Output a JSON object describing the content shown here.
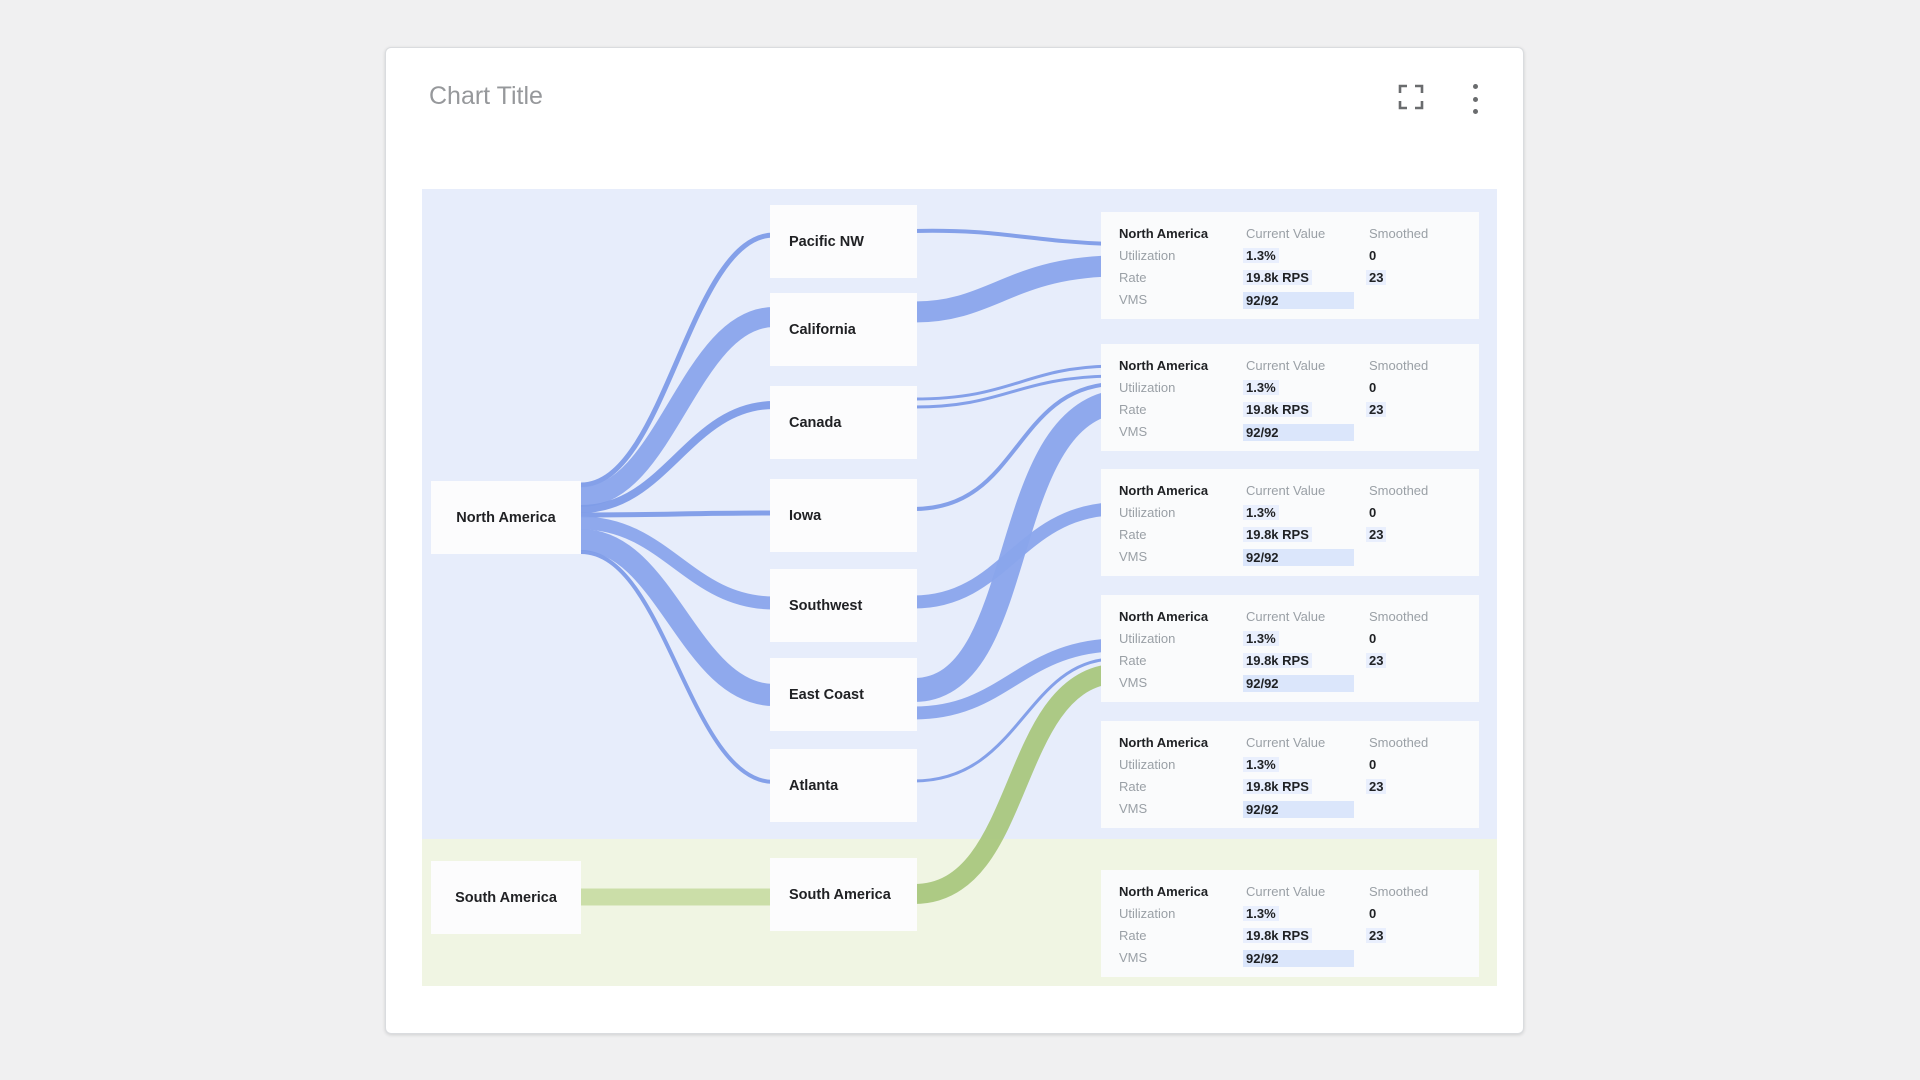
{
  "header": {
    "title": "Chart Title",
    "actions": [
      {
        "icon": "fullscreen-icon"
      },
      {
        "icon": "kebab-menu-icon"
      }
    ]
  },
  "colors": {
    "title_gray": "#96989b",
    "icon_gray": "#6a6c6e",
    "region_blue_bg": "#e7edfb",
    "region_green_bg": "#f0f5e3",
    "link_blue": "#8aa5ec",
    "link_blue_thin": "#7e9ce8",
    "link_green": "#a9c77e",
    "link_green_light": "#c8dca4",
    "value_highlight": "#e9effd",
    "vms_bar": "#dbe6fb",
    "text_gray": "#9aa0a6",
    "text_dark": "#1f2124"
  },
  "chart_data": {
    "type": "sankey",
    "title": "Chart Title",
    "orientation": "left-to-right",
    "groups": [
      {
        "name": "North America",
        "link_color": "#8aa5ec",
        "background": "#e7edfb"
      },
      {
        "name": "South America",
        "link_color": "#a9c77e",
        "background": "#f0f5e3"
      }
    ],
    "nodes": {
      "sources": [
        "North America",
        "South America"
      ],
      "regions": [
        "Pacific NW",
        "California",
        "Canada",
        "Iowa",
        "Southwest",
        "East Coast",
        "Atlanta",
        "South America"
      ]
    },
    "links": [
      {
        "from": "North America",
        "to": "Pacific NW",
        "thickness_px": 5,
        "color": "blue"
      },
      {
        "from": "North America",
        "to": "California",
        "thickness_px": 20,
        "color": "blue"
      },
      {
        "from": "North America",
        "to": "Canada",
        "thickness_px": 8,
        "color": "blue"
      },
      {
        "from": "North America",
        "to": "Iowa",
        "thickness_px": 5,
        "color": "blue"
      },
      {
        "from": "North America",
        "to": "Southwest",
        "thickness_px": 13,
        "color": "blue"
      },
      {
        "from": "North America",
        "to": "East Coast",
        "thickness_px": 22,
        "color": "blue"
      },
      {
        "from": "North America",
        "to": "Atlanta",
        "thickness_px": 4,
        "color": "blue"
      },
      {
        "from": "Pacific NW",
        "to": "stat-card-1",
        "thickness_px": 4,
        "color": "blue"
      },
      {
        "from": "California",
        "to": "stat-card-1",
        "thickness_px": 21,
        "color": "blue"
      },
      {
        "from": "Canada",
        "to": "stat-card-2",
        "thickness_px": 6,
        "color": "blue"
      },
      {
        "from": "Iowa",
        "to": "stat-card-2",
        "thickness_px": 4,
        "color": "blue"
      },
      {
        "from": "East Coast",
        "to": "stat-card-2",
        "thickness_px": 24,
        "color": "blue"
      },
      {
        "from": "Southwest",
        "to": "stat-card-3",
        "thickness_px": 13,
        "color": "blue"
      },
      {
        "from": "East Coast",
        "to": "stat-card-4",
        "thickness_px": 13,
        "color": "blue"
      },
      {
        "from": "Atlanta",
        "to": "stat-card-4",
        "thickness_px": 3,
        "color": "blue"
      },
      {
        "from": "South America",
        "to": "South America",
        "thickness_px": 17,
        "color": "green"
      },
      {
        "from": "South America",
        "to": "stat-card-4",
        "thickness_px": 20,
        "color": "green"
      }
    ],
    "stat_cards": [
      {
        "title": "North America",
        "col_current": "Current Value",
        "col_smoothed": "Smoothed",
        "rows": [
          {
            "label": "Utilization",
            "value": "1.3%",
            "smoothed": "0"
          },
          {
            "label": "Rate",
            "value": "19.8k RPS",
            "smoothed": "23"
          },
          {
            "label": "VMS",
            "value": "92/92",
            "smoothed": ""
          }
        ]
      },
      {
        "title": "North America",
        "col_current": "Current Value",
        "col_smoothed": "Smoothed",
        "rows": [
          {
            "label": "Utilization",
            "value": "1.3%",
            "smoothed": "0"
          },
          {
            "label": "Rate",
            "value": "19.8k RPS",
            "smoothed": "23"
          },
          {
            "label": "VMS",
            "value": "92/92",
            "smoothed": ""
          }
        ]
      },
      {
        "title": "North America",
        "col_current": "Current Value",
        "col_smoothed": "Smoothed",
        "rows": [
          {
            "label": "Utilization",
            "value": "1.3%",
            "smoothed": "0"
          },
          {
            "label": "Rate",
            "value": "19.8k RPS",
            "smoothed": "23"
          },
          {
            "label": "VMS",
            "value": "92/92",
            "smoothed": ""
          }
        ]
      },
      {
        "title": "North America",
        "col_current": "Current Value",
        "col_smoothed": "Smoothed",
        "rows": [
          {
            "label": "Utilization",
            "value": "1.3%",
            "smoothed": "0"
          },
          {
            "label": "Rate",
            "value": "19.8k RPS",
            "smoothed": "23"
          },
          {
            "label": "VMS",
            "value": "92/92",
            "smoothed": ""
          }
        ]
      },
      {
        "title": "North America",
        "col_current": "Current Value",
        "col_smoothed": "Smoothed",
        "rows": [
          {
            "label": "Utilization",
            "value": "1.3%",
            "smoothed": "0"
          },
          {
            "label": "Rate",
            "value": "19.8k RPS",
            "smoothed": "23"
          },
          {
            "label": "VMS",
            "value": "92/92",
            "smoothed": ""
          }
        ]
      },
      {
        "title": "North America",
        "col_current": "Current Value",
        "col_smoothed": "Smoothed",
        "rows": [
          {
            "label": "Utilization",
            "value": "1.3%",
            "smoothed": "0"
          },
          {
            "label": "Rate",
            "value": "19.8k RPS",
            "smoothed": "23"
          },
          {
            "label": "VMS",
            "value": "92/92",
            "smoothed": ""
          }
        ]
      }
    ]
  }
}
